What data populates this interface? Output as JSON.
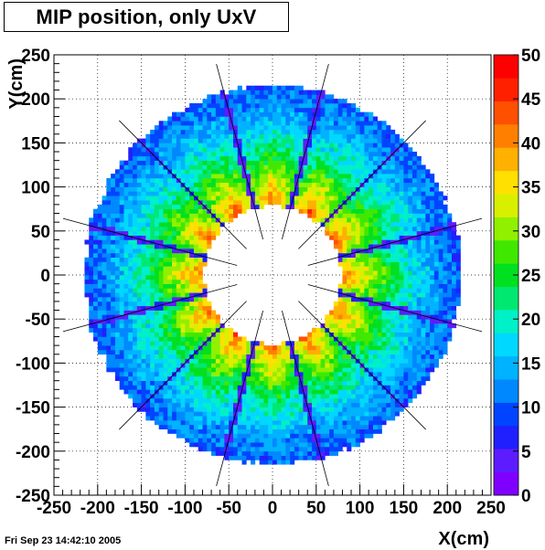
{
  "title": "MIP position, only UxV",
  "timestamp": "Fri Sep 23 14:42:10 2005",
  "chart_data": {
    "type": "heatmap",
    "title": "MIP position, only UxV",
    "xlabel": "X(cm)",
    "ylabel": "Y(cm)",
    "xlim": [
      -250,
      250
    ],
    "ylim": [
      -250,
      250
    ],
    "x_ticks": [
      "-250",
      "-200",
      "-150",
      "-100",
      "-50",
      "0",
      "50",
      "100",
      "150",
      "200",
      "250"
    ],
    "y_ticks": [
      "250",
      "200",
      "150",
      "100",
      "50",
      "0",
      "-50",
      "-100",
      "-150",
      "-200",
      "-250"
    ],
    "grid": true,
    "colorbar": {
      "min": 0,
      "max": 50,
      "ticks": [
        "50",
        "45",
        "40",
        "35",
        "30",
        "25",
        "20",
        "15",
        "10",
        "5",
        "0"
      ],
      "colors": [
        "#7f00ff",
        "#5d1cff",
        "#2020ff",
        "#0044ff",
        "#0088ff",
        "#00b2ff",
        "#00d8ff",
        "#00f0c8",
        "#00e870",
        "#00e020",
        "#40e800",
        "#90f000",
        "#d8f000",
        "#ffe000",
        "#ffb000",
        "#ff8000",
        "#ff5000",
        "#ff2000",
        "#ff0000"
      ]
    },
    "annulus": {
      "inner_radius": 78,
      "outer_radius": 215
    },
    "sector_boundaries_deg": [
      15,
      45,
      75,
      105,
      135,
      165,
      195,
      225,
      255,
      285,
      315,
      345
    ],
    "hotspot_angles_deg": [
      0,
      30,
      60,
      90,
      120,
      150,
      180,
      210,
      240,
      270,
      300,
      330
    ]
  }
}
